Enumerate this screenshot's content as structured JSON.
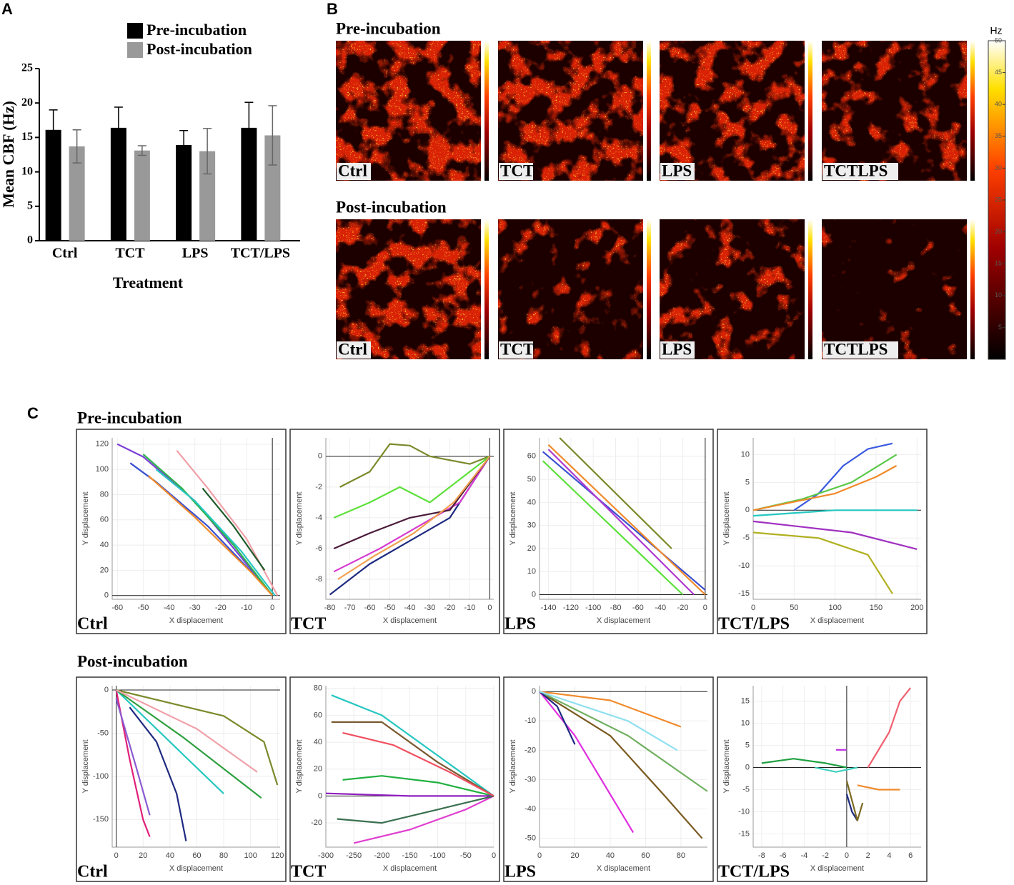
{
  "chart_data": [
    {
      "type": "bar",
      "panel_label": "A",
      "ylabel": "Mean CBF (Hz)",
      "xlabel": "Treatment",
      "categories": [
        "Ctrl",
        "TCT",
        "LPS",
        "TCT/LPS"
      ],
      "series": [
        {
          "name": "Pre-incubation",
          "color": "#000000",
          "values": [
            16.1,
            16.4,
            13.9,
            16.4
          ],
          "errors": [
            2.9,
            3.0,
            2.1,
            3.7
          ]
        },
        {
          "name": "Post-incubation",
          "color": "#999999",
          "values": [
            13.7,
            13.1,
            13.0,
            15.3
          ],
          "errors": [
            2.4,
            0.7,
            3.3,
            4.3
          ]
        }
      ],
      "ylim": [
        0,
        25
      ],
      "yticks": [
        0,
        5,
        10,
        15,
        20,
        25
      ]
    },
    {
      "type": "line",
      "label": "Ctrl",
      "xlabel": "X displacement",
      "ylabel": "Y displacement",
      "grid": true,
      "xlim": [
        -62,
        3
      ],
      "ylim": [
        -3,
        125
      ],
      "xticks": [
        -60,
        -50,
        -40,
        -30,
        -20,
        -10,
        0
      ],
      "yticks": [
        0,
        20,
        40,
        60,
        80,
        100,
        120
      ],
      "series": [
        {
          "color": "#7b3fd6",
          "x": [
            -60,
            -50,
            -30,
            -10,
            0
          ],
          "y": [
            120,
            110,
            75,
            25,
            0
          ]
        },
        {
          "color": "#3a4fd0",
          "x": [
            -55,
            -45,
            -25,
            -5,
            0
          ],
          "y": [
            105,
            90,
            55,
            12,
            0
          ]
        },
        {
          "color": "#2fb34a",
          "x": [
            -50,
            -35,
            -15,
            0
          ],
          "y": [
            112,
            85,
            40,
            0
          ]
        },
        {
          "color": "#25c7c0",
          "x": [
            -45,
            -30,
            -12,
            1
          ],
          "y": [
            100,
            75,
            35,
            0
          ]
        },
        {
          "color": "#f0a0a8",
          "x": [
            -37,
            -25,
            -10,
            2
          ],
          "y": [
            115,
            85,
            45,
            0
          ]
        },
        {
          "color": "#f08a2a",
          "x": [
            -48,
            -30,
            -8,
            0
          ],
          "y": [
            95,
            62,
            18,
            0
          ]
        },
        {
          "color": "#1f5a2a",
          "x": [
            -27,
            -15,
            -3
          ],
          "y": [
            85,
            55,
            20
          ]
        }
      ]
    },
    {
      "type": "line",
      "label": "TCT",
      "xlabel": "X displacement",
      "ylabel": "Y displacement",
      "grid": true,
      "xlim": [
        -82,
        2
      ],
      "ylim": [
        -9.3,
        1.2
      ],
      "xticks": [
        -80,
        -70,
        -60,
        -50,
        -40,
        -30,
        -20,
        -10,
        0
      ],
      "yticks": [
        -8,
        -6,
        -4,
        -2,
        0
      ],
      "series": [
        {
          "color": "#7a8a2a",
          "x": [
            -75,
            -60,
            -50,
            -40,
            -30,
            -10,
            0
          ],
          "y": [
            -2,
            -1,
            0.8,
            0.7,
            0,
            -0.5,
            0
          ]
        },
        {
          "color": "#5ce03a",
          "x": [
            -78,
            -60,
            -45,
            -30,
            -10,
            0
          ],
          "y": [
            -4,
            -3,
            -2,
            -3,
            -1,
            0
          ]
        },
        {
          "color": "#1e2a80",
          "x": [
            -80,
            -60,
            -40,
            -20,
            0
          ],
          "y": [
            -9,
            -7,
            -5.5,
            -4,
            0
          ]
        },
        {
          "color": "#d63ad0",
          "x": [
            -78,
            -55,
            -35,
            -15,
            0
          ],
          "y": [
            -7.5,
            -6,
            -4.5,
            -3,
            0
          ]
        },
        {
          "color": "#4a1a3a",
          "x": [
            -78,
            -60,
            -40,
            -20,
            0
          ],
          "y": [
            -6,
            -5,
            -4,
            -3.5,
            0
          ]
        },
        {
          "color": "#f0a050",
          "x": [
            -76,
            -58,
            -38,
            -18,
            0
          ],
          "y": [
            -8,
            -6.5,
            -5,
            -3,
            0
          ]
        }
      ]
    },
    {
      "type": "line",
      "label": "LPS",
      "xlabel": "X displacement",
      "ylabel": "Y displacement",
      "grid": true,
      "xlim": [
        -148,
        2
      ],
      "ylim": [
        -2,
        68
      ],
      "xticks": [
        -140,
        -120,
        -100,
        -80,
        -60,
        -40,
        -20,
        0
      ],
      "yticks": [
        0,
        10,
        20,
        30,
        40,
        50,
        60
      ],
      "series": [
        {
          "color": "#5ce03a",
          "x": [
            -145,
            -20
          ],
          "y": [
            58,
            0
          ]
        },
        {
          "color": "#3a4fd0",
          "x": [
            -145,
            0
          ],
          "y": [
            62,
            2
          ]
        },
        {
          "color": "#b03ad0",
          "x": [
            -140,
            -10
          ],
          "y": [
            63,
            0
          ]
        },
        {
          "color": "#f08a2a",
          "x": [
            -140,
            0
          ],
          "y": [
            65,
            0
          ]
        },
        {
          "color": "#7a8a2a",
          "x": [
            -130,
            -30
          ],
          "y": [
            68,
            20
          ]
        }
      ]
    },
    {
      "type": "line",
      "label": "TCT/LPS",
      "xlabel": "X displacement",
      "ylabel": "Y displacement",
      "grid": true,
      "xlim": [
        0,
        205
      ],
      "ylim": [
        -16,
        13
      ],
      "xticks": [
        0,
        50,
        100,
        150,
        200
      ],
      "yticks": [
        -15,
        -10,
        -5,
        0,
        5,
        10
      ],
      "series": [
        {
          "color": "#3a5ae0",
          "x": [
            50,
            80,
            110,
            140,
            170
          ],
          "y": [
            0,
            3,
            8,
            11,
            12
          ]
        },
        {
          "color": "#5cc84a",
          "x": [
            0,
            60,
            120,
            175
          ],
          "y": [
            0,
            2,
            5,
            10
          ]
        },
        {
          "color": "#f08a2a",
          "x": [
            0,
            100,
            150,
            175
          ],
          "y": [
            0,
            3,
            6,
            8
          ]
        },
        {
          "color": "#b0b020",
          "x": [
            0,
            80,
            140,
            170
          ],
          "y": [
            -4,
            -5,
            -8,
            -15
          ]
        },
        {
          "color": "#a030c0",
          "x": [
            0,
            60,
            120,
            200
          ],
          "y": [
            -2,
            -3,
            -4,
            -7
          ]
        },
        {
          "color": "#25c7c0",
          "x": [
            0,
            100,
            200
          ],
          "y": [
            -1,
            0,
            0
          ]
        }
      ]
    },
    {
      "type": "line",
      "label": "Ctrl",
      "xlabel": "X displacement",
      "ylabel": "Y displacement",
      "grid": true,
      "xlim": [
        -3,
        122
      ],
      "ylim": [
        -182,
        5
      ],
      "xticks": [
        0,
        20,
        40,
        60,
        80,
        100,
        120
      ],
      "yticks": [
        -150,
        -100,
        -50,
        0
      ],
      "series": [
        {
          "color": "#e0207a",
          "x": [
            0,
            10,
            20,
            25
          ],
          "y": [
            0,
            -80,
            -150,
            -170
          ]
        },
        {
          "color": "#1e2a80",
          "x": [
            10,
            30,
            45,
            52
          ],
          "y": [
            -20,
            -60,
            -120,
            -175
          ]
        },
        {
          "color": "#8a5ad0",
          "x": [
            0,
            15,
            25
          ],
          "y": [
            -10,
            -90,
            -145
          ]
        },
        {
          "color": "#7a8a2a",
          "x": [
            0,
            40,
            80,
            110,
            120
          ],
          "y": [
            0,
            -15,
            -30,
            -60,
            -110
          ]
        },
        {
          "color": "#25c7c0",
          "x": [
            0,
            40,
            80
          ],
          "y": [
            0,
            -60,
            -120
          ]
        },
        {
          "color": "#2fa040",
          "x": [
            0,
            50,
            108
          ],
          "y": [
            0,
            -55,
            -125
          ]
        },
        {
          "color": "#f0a0a8",
          "x": [
            0,
            60,
            105
          ],
          "y": [
            0,
            -45,
            -95
          ]
        }
      ]
    },
    {
      "type": "line",
      "label": "TCT",
      "xlabel": "X displacement",
      "ylabel": "Y displacement",
      "grid": true,
      "xlim": [
        -300,
        0
      ],
      "ylim": [
        -38,
        82
      ],
      "xticks": [
        -300,
        -250,
        -200,
        -150,
        -100,
        -50,
        0
      ],
      "yticks": [
        -20,
        0,
        20,
        40,
        60,
        80
      ],
      "series": [
        {
          "color": "#25c7c0",
          "x": [
            -290,
            -200,
            -100,
            0
          ],
          "y": [
            75,
            60,
            30,
            0
          ]
        },
        {
          "color": "#7a5a30",
          "x": [
            -290,
            -200,
            -100,
            0
          ],
          "y": [
            55,
            55,
            25,
            0
          ]
        },
        {
          "color": "#20b040",
          "x": [
            -270,
            -200,
            -100,
            0
          ],
          "y": [
            12,
            15,
            10,
            0
          ]
        },
        {
          "color": "#9020c0",
          "x": [
            -300,
            -150,
            0
          ],
          "y": [
            2,
            0,
            0
          ]
        },
        {
          "color": "#e040d0",
          "x": [
            -250,
            -150,
            -50,
            0
          ],
          "y": [
            -35,
            -25,
            -10,
            0
          ]
        },
        {
          "color": "#3a7050",
          "x": [
            -280,
            -200,
            -100,
            0
          ],
          "y": [
            -17,
            -20,
            -10,
            0
          ]
        },
        {
          "color": "#f05060",
          "x": [
            -270,
            -180,
            -80,
            0
          ],
          "y": [
            47,
            38,
            18,
            0
          ]
        }
      ]
    },
    {
      "type": "line",
      "label": "LPS",
      "xlabel": "X displacement",
      "ylabel": "Y displacement",
      "grid": true,
      "xlim": [
        0,
        95
      ],
      "ylim": [
        -53,
        2
      ],
      "xticks": [
        0,
        20,
        40,
        60,
        80
      ],
      "yticks": [
        -50,
        -40,
        -30,
        -20,
        -10,
        0
      ],
      "series": [
        {
          "color": "#f08a2a",
          "x": [
            0,
            40,
            80
          ],
          "y": [
            0,
            -3,
            -12
          ]
        },
        {
          "color": "#e030e0",
          "x": [
            0,
            20,
            40,
            53
          ],
          "y": [
            0,
            -15,
            -35,
            -48
          ]
        },
        {
          "color": "#7a5a20",
          "x": [
            0,
            40,
            70,
            92
          ],
          "y": [
            0,
            -15,
            -35,
            -50
          ]
        },
        {
          "color": "#70b060",
          "x": [
            0,
            50,
            95
          ],
          "y": [
            0,
            -15,
            -34
          ]
        },
        {
          "color": "#1e2a80",
          "x": [
            0,
            10,
            20
          ],
          "y": [
            0,
            -5,
            -18
          ]
        },
        {
          "color": "#90e0f0",
          "x": [
            0,
            50,
            78
          ],
          "y": [
            0,
            -10,
            -20
          ]
        }
      ]
    },
    {
      "type": "line",
      "label": "TCT/LPS",
      "xlabel": "X displacement",
      "ylabel": "Y displacement",
      "grid": true,
      "xlim": [
        -8.8,
        7
      ],
      "ylim": [
        -18,
        18.5
      ],
      "xticks": [
        -8,
        -6,
        -4,
        -2,
        0,
        2,
        4,
        6
      ],
      "yticks": [
        -15,
        -10,
        -5,
        0,
        5,
        10,
        15
      ],
      "series": [
        {
          "color": "#f06070",
          "x": [
            2,
            4,
            5,
            6
          ],
          "y": [
            0,
            8,
            15,
            18
          ]
        },
        {
          "color": "#20a040",
          "x": [
            -8,
            -5,
            -2,
            0
          ],
          "y": [
            1,
            2,
            1,
            0
          ]
        },
        {
          "color": "#f08a2a",
          "x": [
            1,
            3,
            5
          ],
          "y": [
            -4,
            -5,
            -5
          ]
        },
        {
          "color": "#1e2a80",
          "x": [
            0,
            0.5,
            1
          ],
          "y": [
            -6,
            -10,
            -12
          ]
        },
        {
          "color": "#7a6a20",
          "x": [
            0,
            1,
            1.5
          ],
          "y": [
            -3,
            -12,
            -8
          ]
        },
        {
          "color": "#c030e0",
          "x": [
            -1,
            0
          ],
          "y": [
            4,
            4
          ]
        },
        {
          "color": "#40d0c0",
          "x": [
            -3,
            -1,
            1
          ],
          "y": [
            0,
            -1,
            0
          ]
        }
      ]
    }
  ],
  "heatmaps": {
    "label": "B",
    "rows": [
      {
        "title": "Pre-incubation",
        "tiles": [
          "Ctrl",
          "TCT",
          "LPS",
          "TCTLPS"
        ]
      },
      {
        "title": "Post-incubation",
        "tiles": [
          "Ctrl",
          "TCT",
          "LPS",
          "TCTLPS"
        ]
      }
    ],
    "colorbar": {
      "unit": "Hz",
      "lim": [
        0,
        50
      ],
      "ticks": [
        5,
        10,
        15,
        20,
        25,
        30,
        35,
        40,
        45,
        50
      ]
    }
  },
  "trajectories": {
    "label": "C",
    "rows": [
      "Pre-incubation",
      "Post-incubation"
    ]
  }
}
